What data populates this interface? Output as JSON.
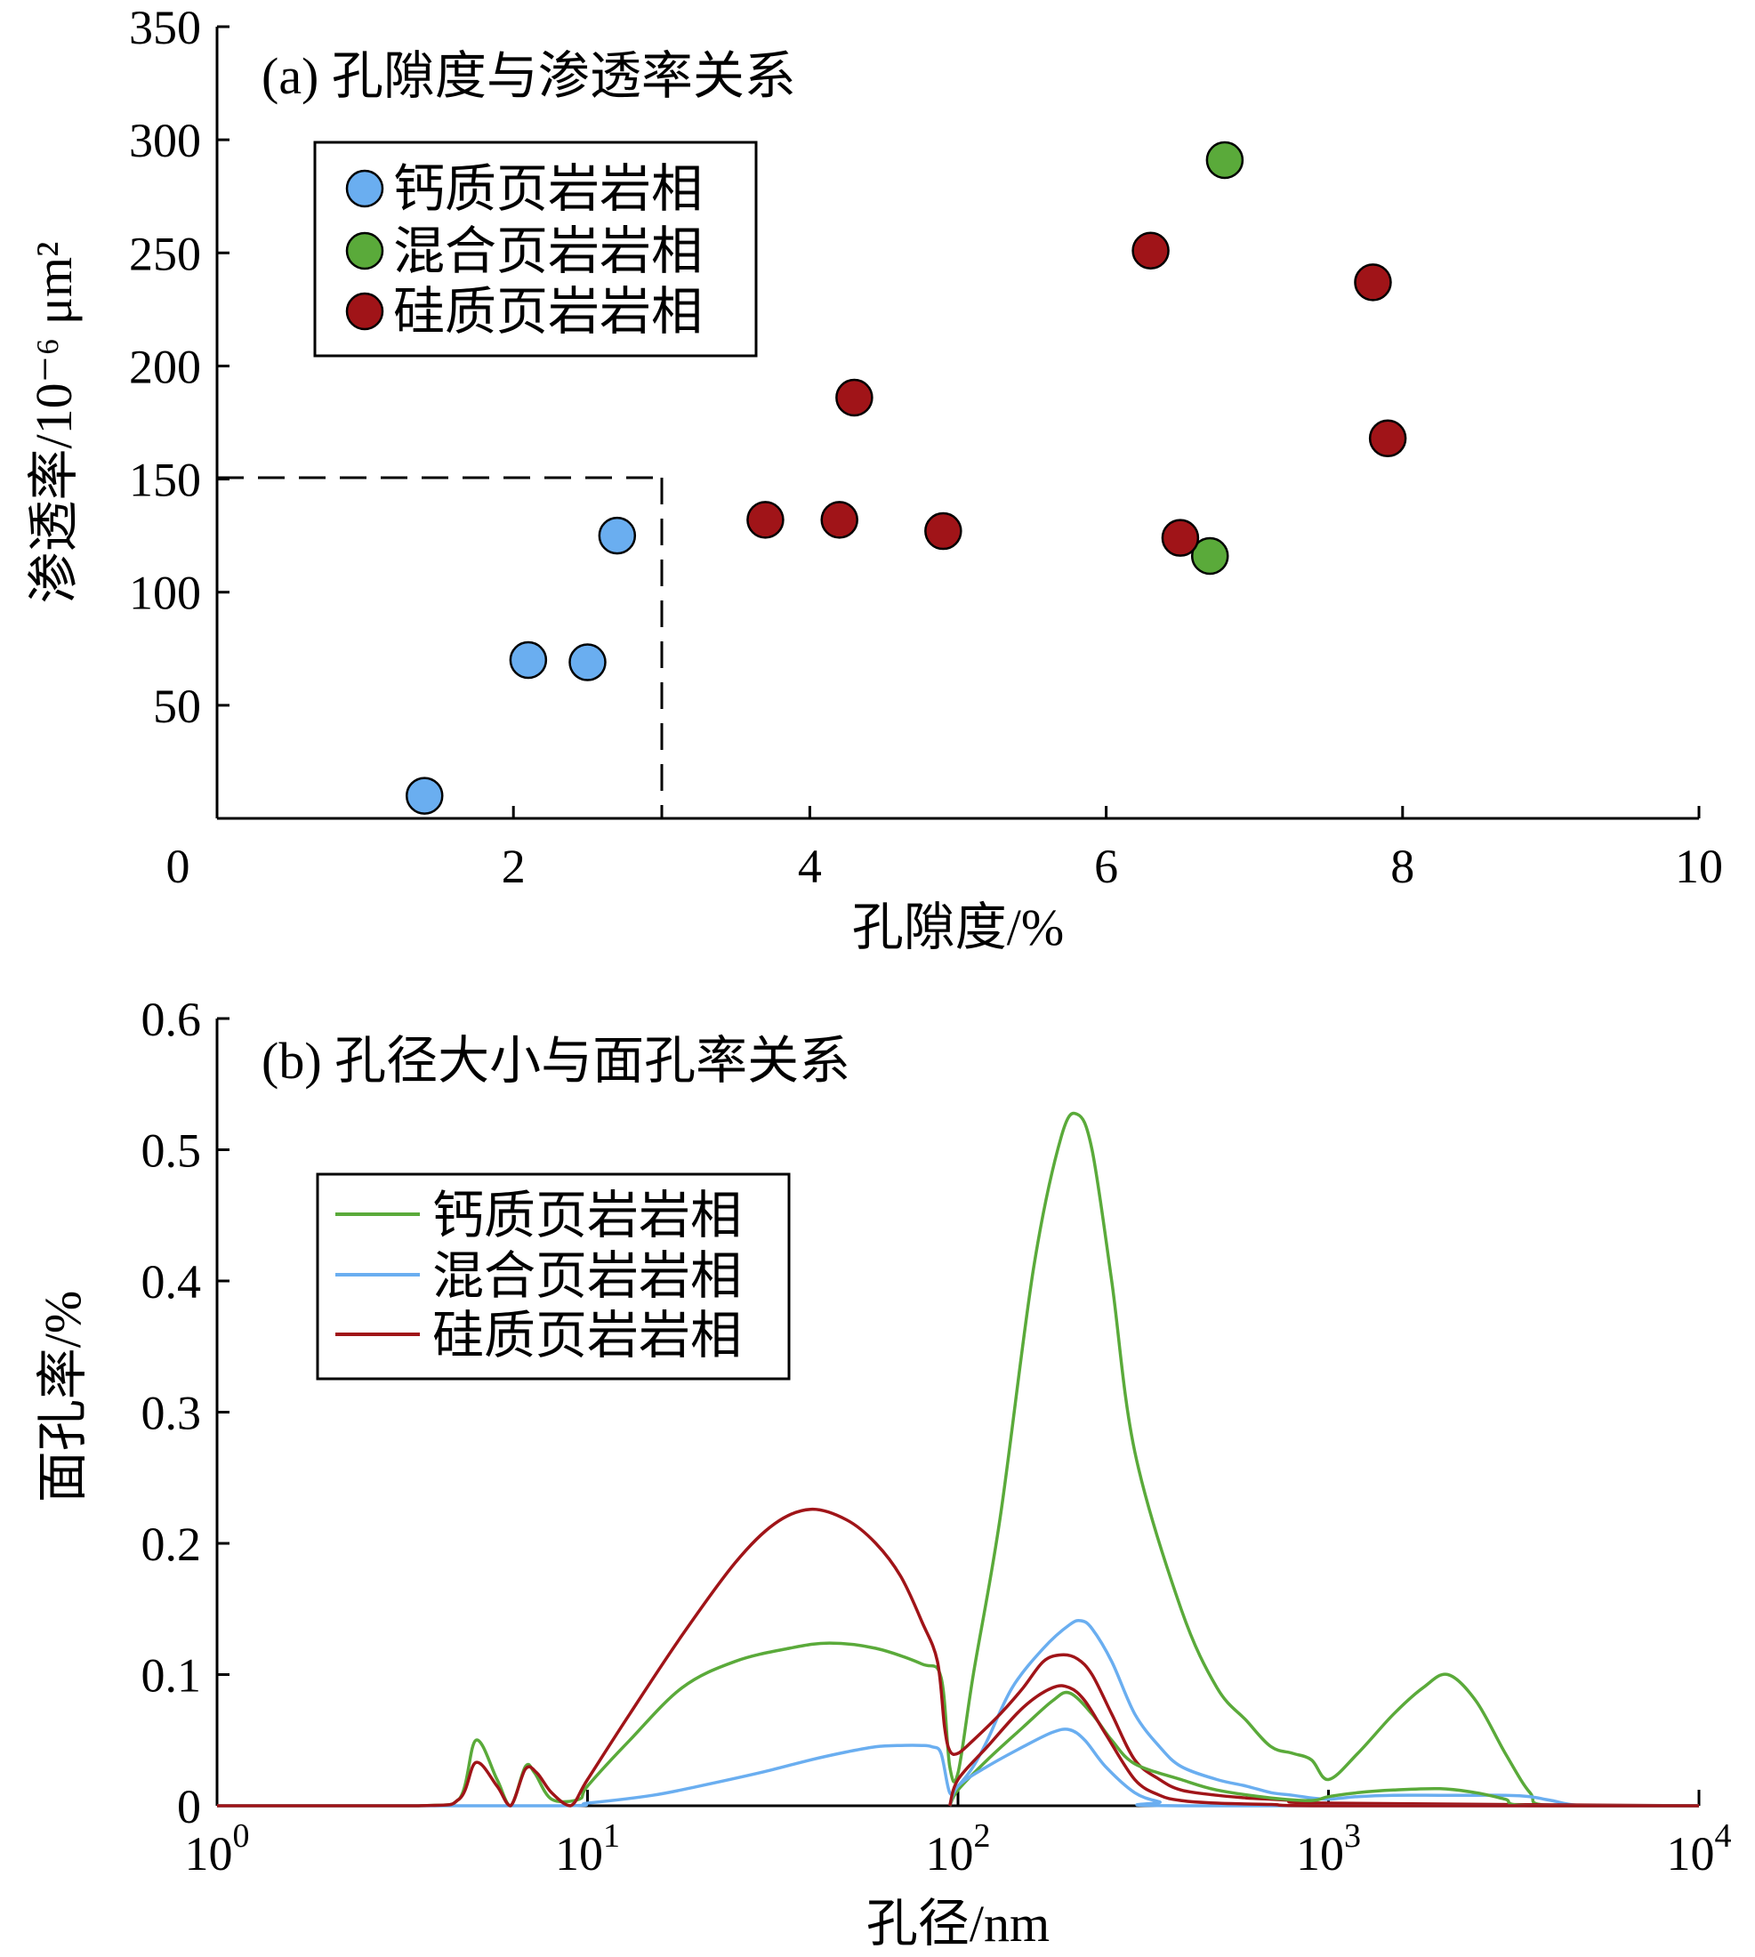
{
  "chart_data": [
    {
      "type": "scatter",
      "title": "(a) 孔隙度与渗透率关系",
      "xlabel": "孔隙度/%",
      "ylabel": "渗透率/10⁻⁶ μm²",
      "xlim": [
        0,
        10
      ],
      "ylim": [
        0,
        350
      ],
      "x_ticks": [
        "0",
        "2",
        "4",
        "6",
        "8",
        "10"
      ],
      "y_ticks": [
        "50",
        "100",
        "150",
        "200",
        "250",
        "300",
        "350"
      ],
      "legend_position": "top-left",
      "reference_box": {
        "x_max": 3,
        "y_max": 150,
        "style": "dashed"
      },
      "series": [
        {
          "name": "钙质页岩岩相",
          "color": "#6aaef0",
          "points": [
            [
              1.4,
              10
            ],
            [
              2.1,
              70
            ],
            [
              2.5,
              69
            ],
            [
              2.7,
              125
            ]
          ]
        },
        {
          "name": "混合页岩岩相",
          "color": "#5aaa3a",
          "points": [
            [
              6.8,
              291
            ],
            [
              6.7,
              116
            ]
          ]
        },
        {
          "name": "硅质页岩岩相",
          "color": "#a01418",
          "points": [
            [
              3.7,
              132
            ],
            [
              4.2,
              132
            ],
            [
              4.3,
              186
            ],
            [
              4.9,
              127
            ],
            [
              6.3,
              251
            ],
            [
              6.5,
              124
            ],
            [
              7.8,
              237
            ],
            [
              7.9,
              168
            ]
          ]
        }
      ]
    },
    {
      "type": "line",
      "title": "(b) 孔径大小与面孔率关系",
      "xlabel": "孔径/nm",
      "ylabel": "面孔率/%",
      "x_scale": "log",
      "xlim": [
        1,
        10000
      ],
      "ylim": [
        0,
        0.6
      ],
      "x_ticks": [
        {
          "base": "10",
          "exp": "0"
        },
        {
          "base": "10",
          "exp": "1"
        },
        {
          "base": "10",
          "exp": "2"
        },
        {
          "base": "10",
          "exp": "3"
        },
        {
          "base": "10",
          "exp": "4"
        }
      ],
      "y_ticks": [
        "0",
        "0.1",
        "0.2",
        "0.3",
        "0.4",
        "0.5",
        "0.6"
      ],
      "legend_position": "top-left",
      "legend": [
        {
          "name": "钙质页岩岩相",
          "color": "#5aaa3a"
        },
        {
          "name": "混合页岩岩相",
          "color": "#6aaef0"
        },
        {
          "name": "硅质页岩岩相",
          "color": "#a01418"
        }
      ],
      "series": [
        {
          "color": "#5aaa3a",
          "x": [
            1,
            3.5,
            4.5,
            5,
            5.7,
            6.2,
            6.8,
            7.2,
            8,
            9.5,
            10,
            13,
            18,
            25,
            35,
            45,
            60,
            80,
            90,
            95,
            100,
            110,
            130,
            160,
            190,
            210,
            230,
            260,
            300,
            400,
            500,
            600,
            700,
            800,
            900,
            1000,
            1200,
            1500,
            1800,
            2100,
            2500,
            3000,
            3500,
            4000,
            10000
          ],
          "y": [
            0,
            0,
            0.005,
            0.05,
            0.02,
            0,
            0.03,
            0.025,
            0.005,
            0.005,
            0.015,
            0.05,
            0.09,
            0.11,
            0.12,
            0.124,
            0.12,
            0.108,
            0.098,
            0.03,
            0.025,
            0.1,
            0.22,
            0.41,
            0.51,
            0.527,
            0.5,
            0.4,
            0.27,
            0.15,
            0.09,
            0.065,
            0.045,
            0.04,
            0.035,
            0.02,
            0.04,
            0.07,
            0.09,
            0.1,
            0.08,
            0.04,
            0.01,
            0,
            0
          ]
        },
        {
          "color": "#6aaef0",
          "x": [
            1,
            8,
            10,
            15,
            20,
            30,
            40,
            50,
            60,
            70,
            80,
            85,
            90,
            95,
            100,
            110,
            120,
            140,
            170,
            200,
            215,
            230,
            260,
            300,
            350,
            400,
            500,
            600,
            700,
            800,
            900,
            1000,
            1200,
            1500,
            2000,
            2500,
            3000,
            3500,
            4000,
            5000,
            10000
          ],
          "y": [
            0,
            0,
            0.002,
            0.008,
            0.015,
            0.026,
            0.035,
            0.041,
            0.045,
            0.046,
            0.046,
            0.045,
            0.04,
            0.01,
            0.015,
            0.03,
            0.05,
            0.09,
            0.12,
            0.138,
            0.141,
            0.135,
            0.11,
            0.07,
            0.045,
            0.03,
            0.02,
            0.015,
            0.01,
            0.008,
            0.006,
            0.005,
            0.007,
            0.008,
            0.008,
            0.008,
            0.008,
            0.007,
            0.004,
            0,
            0
          ]
        },
        {
          "color": "#a01418",
          "x": [
            1,
            3.5,
            4.5,
            5,
            5.7,
            6.2,
            6.8,
            7.3,
            8,
            9,
            10,
            13,
            18,
            25,
            32,
            40,
            50,
            60,
            70,
            80,
            88,
            92,
            95,
            100,
            110,
            130,
            150,
            170,
            190,
            210,
            230,
            260,
            300,
            350,
            400,
            500,
            600,
            700,
            800,
            1000,
            10000
          ],
          "y": [
            0,
            0,
            0.005,
            0.033,
            0.015,
            0,
            0.028,
            0.025,
            0.01,
            0,
            0.02,
            0.07,
            0.13,
            0.185,
            0.215,
            0.226,
            0.218,
            0.2,
            0.175,
            0.14,
            0.11,
            0.06,
            0.042,
            0.04,
            0.05,
            0.07,
            0.09,
            0.11,
            0.115,
            0.112,
            0.1,
            0.07,
            0.035,
            0.02,
            0.012,
            0.008,
            0.006,
            0.005,
            0.004,
            0.002,
            0
          ]
        },
        {
          "color": "#5aaa3a",
          "x": [
            95,
            100,
            120,
            150,
            180,
            200,
            230,
            260,
            300,
            400,
            500,
            700,
            900,
            1000,
            1200,
            1500,
            2000,
            2500,
            3000,
            3500,
            10000
          ],
          "y": [
            0,
            0.012,
            0.035,
            0.06,
            0.08,
            0.086,
            0.07,
            0.05,
            0.032,
            0.02,
            0.012,
            0.006,
            0.004,
            0.007,
            0.01,
            0.012,
            0.013,
            0.01,
            0.005,
            0,
            0
          ]
        },
        {
          "color": "#6aaef0",
          "x": [
            95,
            100,
            120,
            150,
            180,
            200,
            220,
            250,
            300,
            350,
            400,
            10000
          ],
          "y": [
            0,
            0.015,
            0.03,
            0.045,
            0.056,
            0.058,
            0.05,
            0.03,
            0.01,
            0.003,
            0,
            0
          ]
        },
        {
          "color": "#a01418",
          "x": [
            95,
            100,
            120,
            150,
            180,
            200,
            220,
            250,
            300,
            350,
            400,
            500,
            700,
            1000,
            10000
          ],
          "y": [
            0,
            0.02,
            0.045,
            0.075,
            0.09,
            0.09,
            0.08,
            0.055,
            0.02,
            0.008,
            0.004,
            0.002,
            0.001,
            0,
            0
          ]
        }
      ]
    }
  ]
}
